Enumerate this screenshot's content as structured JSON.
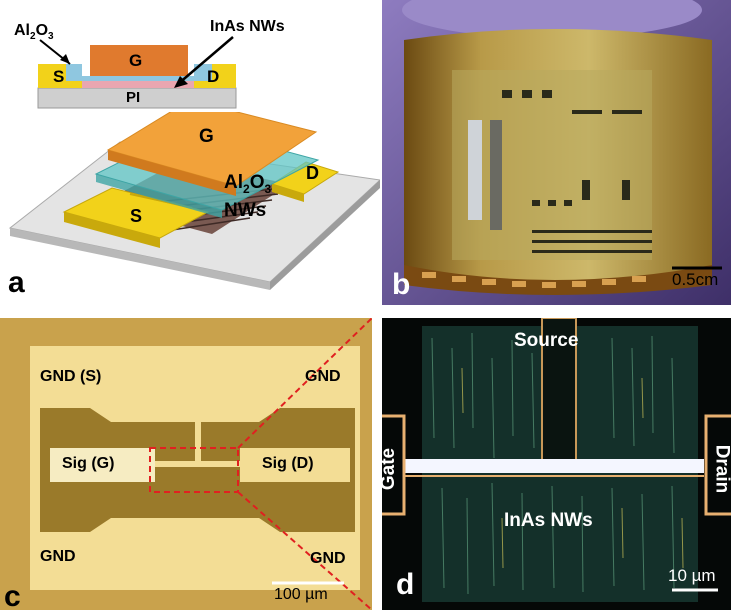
{
  "panel_a": {
    "letter": "a",
    "cross_section": {
      "al2o3_main": "Al",
      "al2o3_sub": "2",
      "al2o3_tail": "O",
      "al2o3_sub2": "3",
      "nw_label": "InAs NWs",
      "gate": "G",
      "source": "S",
      "drain": "D",
      "substrate": "PI"
    },
    "schematic_3d": {
      "gate": "G",
      "drain": "D",
      "source": "S",
      "al2o3_main": "Al",
      "al2o3_sub": "2",
      "al2o3_tail": "O",
      "al2o3_sub2": "3",
      "nws": "NWs"
    }
  },
  "panel_b": {
    "letter": "b",
    "scale_bar": "0.5cm"
  },
  "panel_c": {
    "letter": "c",
    "pad_top_left": "GND (S)",
    "pad_top_right": "GND",
    "pad_bottom_left": "GND",
    "pad_bottom_right": "GND",
    "sig_gate": "Sig (G)",
    "sig_drain": "Sig (D)",
    "scale_bar": "100 µm"
  },
  "panel_d": {
    "letter": "d",
    "source": "Source",
    "gate": "Gate",
    "drain": "Drain",
    "nws": "InAs NWs",
    "scale_bar": "10 µm"
  },
  "colors": {
    "gate_orange": "#e07a2e",
    "source_yellow": "#f2d21a",
    "substrate_grey": "#cfcfcf",
    "oxide_cyan": "#5fc6c6",
    "photo_bg_b": "#5c4a7a",
    "optical_gold": "#d8b75a",
    "dark_field_bg": "#0b1612",
    "zoom_red": "#e02020"
  }
}
